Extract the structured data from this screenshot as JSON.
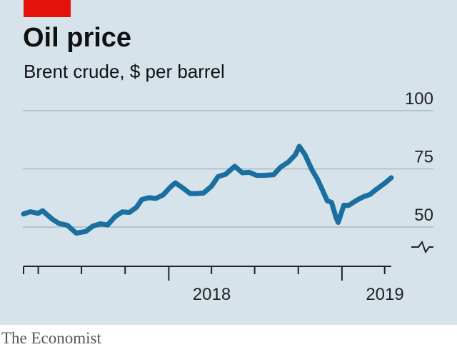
{
  "colors": {
    "tag": "#e3120b",
    "background": "#d6e3ea",
    "line": "#1a6fa0",
    "grid": "#a9b9c3",
    "text": "#111111"
  },
  "header": {
    "title": "Oil price",
    "subtitle": "Brent crude, $ per barrel"
  },
  "source": "The Economist",
  "chart_data": {
    "type": "line",
    "title": "Oil price",
    "subtitle": "Brent crude, $ per barrel",
    "ylim": [
      50,
      100
    ],
    "y_axis_break": true,
    "yticks": [
      "100",
      "75",
      "50"
    ],
    "xlim": [
      "2017-03-01",
      "2019-04-15"
    ],
    "xtick_labels": [
      {
        "label": "2018",
        "date": "2018-01-01"
      },
      {
        "label": "2019",
        "date": "2019-01-01"
      }
    ],
    "grid": true,
    "series": [
      {
        "x": [
          "2017-03-01",
          "2017-03-15",
          "2017-04-01",
          "2017-04-10",
          "2017-05-01",
          "2017-05-15",
          "2017-06-01",
          "2017-06-20",
          "2017-07-10",
          "2017-07-25",
          "2017-08-10",
          "2017-08-25",
          "2017-09-10",
          "2017-09-25",
          "2017-10-10",
          "2017-10-25",
          "2017-11-05",
          "2017-11-20",
          "2017-12-05",
          "2017-12-20",
          "2018-01-05",
          "2018-01-15",
          "2018-02-01",
          "2018-02-15",
          "2018-03-01",
          "2018-03-15",
          "2018-04-01",
          "2018-04-15",
          "2018-05-01",
          "2018-05-20",
          "2018-06-05",
          "2018-06-20",
          "2018-07-05",
          "2018-07-20",
          "2018-08-10",
          "2018-08-25",
          "2018-09-10",
          "2018-09-25",
          "2018-10-03",
          "2018-10-15",
          "2018-10-30",
          "2018-11-10",
          "2018-11-20",
          "2018-12-01",
          "2018-12-10",
          "2018-12-20",
          "2018-12-24",
          "2019-01-05",
          "2019-01-15",
          "2019-02-01",
          "2019-02-15",
          "2019-03-01",
          "2019-03-15",
          "2019-04-01",
          "2019-04-15"
        ],
        "y": [
          55.6,
          56.6,
          55.9,
          57.0,
          53.3,
          51.5,
          50.8,
          47.4,
          48.1,
          50.4,
          51.4,
          50.9,
          54.5,
          56.5,
          56.3,
          58.5,
          61.8,
          62.6,
          62.3,
          63.8,
          67.3,
          69.0,
          66.6,
          64.4,
          64.4,
          64.6,
          67.5,
          71.7,
          72.7,
          76.1,
          73.3,
          73.5,
          72.2,
          72.2,
          72.5,
          75.8,
          77.9,
          81.1,
          84.7,
          81.1,
          74.5,
          70.7,
          66.3,
          61.3,
          60.6,
          53.8,
          52.0,
          59.4,
          59.3,
          61.5,
          63.0,
          64.0,
          66.3,
          68.8,
          71.2
        ]
      }
    ]
  }
}
